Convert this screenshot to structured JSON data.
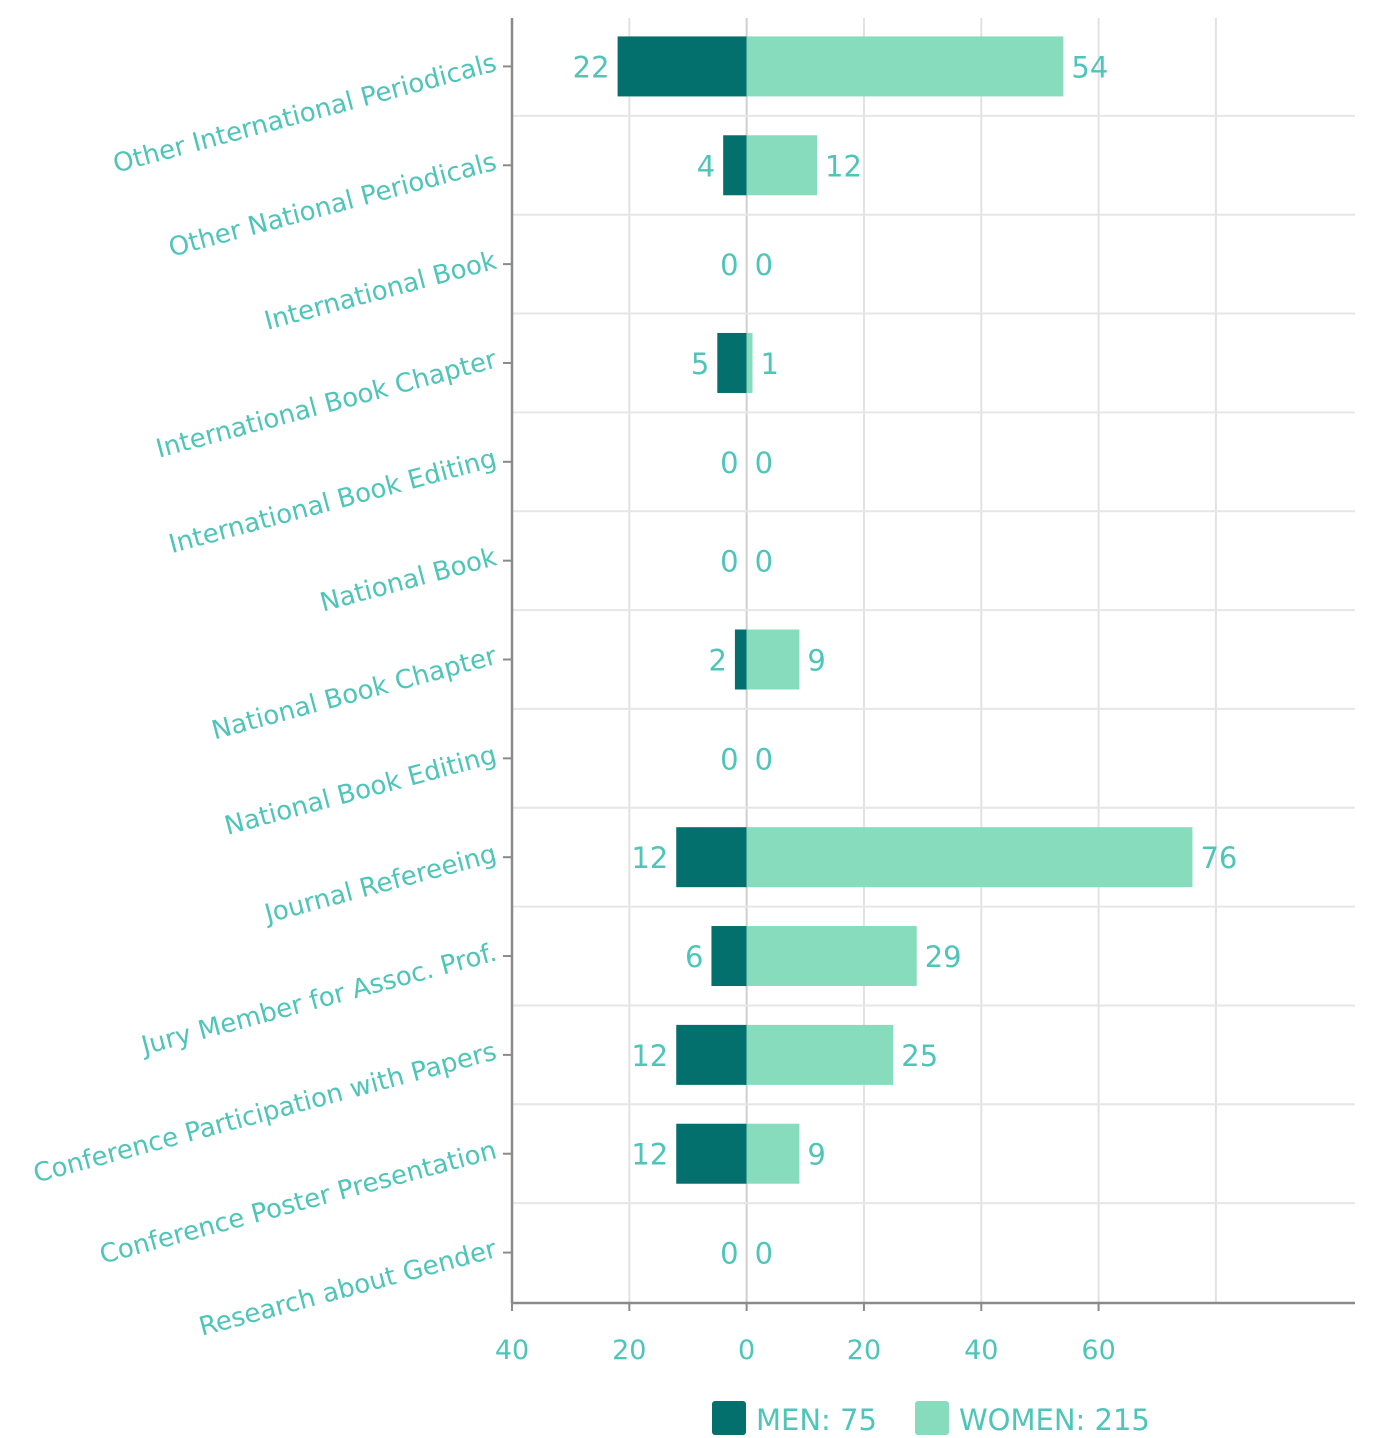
{
  "chart_data": {
    "type": "bar",
    "orientation": "horizontal-diverging",
    "categories": [
      "Other International Periodicals",
      "Other National Periodicals",
      "International Book",
      "International Book Chapter",
      "International Book Editing",
      "National Book",
      "National Book Chapter",
      "National Book Editing",
      "Journal Refereeing",
      "Jury Member for Assoc. Prof.",
      "Conference Participation with Papers",
      "Conference Poster Presentation",
      "Research about Gender"
    ],
    "series": [
      {
        "name": "MEN",
        "color": "#03706e",
        "values": [
          22,
          4,
          0,
          5,
          0,
          0,
          2,
          0,
          12,
          6,
          12,
          12,
          0
        ]
      },
      {
        "name": "WOMEN",
        "color": "#87dcbd",
        "values": [
          54,
          12,
          0,
          1,
          0,
          0,
          9,
          0,
          76,
          29,
          25,
          9,
          0
        ]
      }
    ],
    "xlim": [
      -40,
      80
    ],
    "x_ticks": [
      -40,
      -20,
      0,
      20,
      40,
      60
    ],
    "x_tick_labels": [
      "40",
      "20",
      "0",
      "20",
      "40",
      "60"
    ],
    "grid": true,
    "legend": {
      "position": "bottom-center",
      "entries": [
        "MEN: 75",
        "WOMEN: 215"
      ]
    }
  }
}
